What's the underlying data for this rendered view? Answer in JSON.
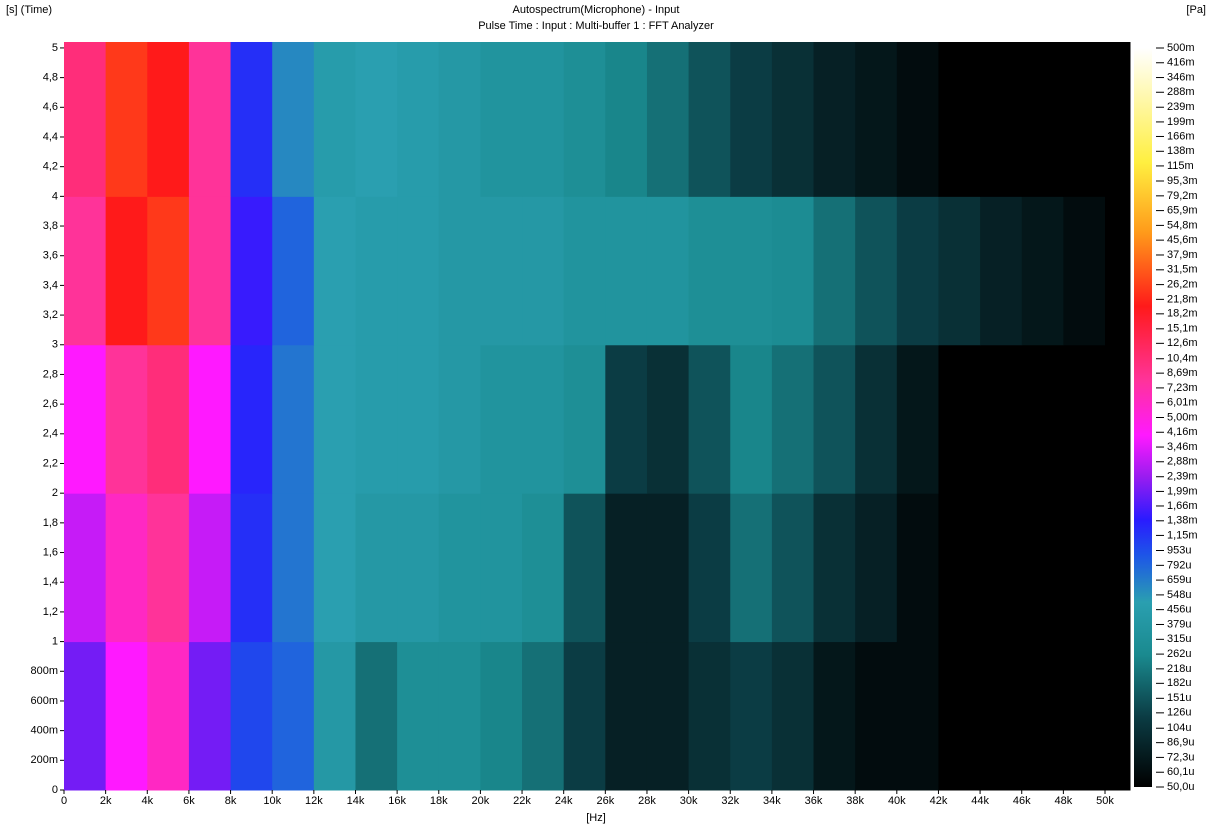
{
  "chart_data": {
    "type": "heatmap",
    "title": "Autospectrum(Microphone) - Input",
    "subtitle": "Pulse Time : Input : Multi-buffer 1 : FFT Analyzer",
    "y_label": "[s] (Time)",
    "x_label": "[Hz]",
    "colorbar_label": "[Pa]",
    "xlim": [
      0,
      51200
    ],
    "ylim": [
      0,
      5.04
    ],
    "xticks": [
      0,
      {
        "value": 2000,
        "label": "2k"
      },
      {
        "value": 4000,
        "label": "4k"
      },
      {
        "value": 6000,
        "label": "6k"
      },
      {
        "value": 8000,
        "label": "8k"
      },
      {
        "value": 10000,
        "label": "10k"
      },
      {
        "value": 12000,
        "label": "12k"
      },
      {
        "value": 14000,
        "label": "14k"
      },
      {
        "value": 16000,
        "label": "16k"
      },
      {
        "value": 18000,
        "label": "18k"
      },
      {
        "value": 20000,
        "label": "20k"
      },
      {
        "value": 22000,
        "label": "22k"
      },
      {
        "value": 24000,
        "label": "24k"
      },
      {
        "value": 26000,
        "label": "26k"
      },
      {
        "value": 28000,
        "label": "28k"
      },
      {
        "value": 30000,
        "label": "30k"
      },
      {
        "value": 32000,
        "label": "32k"
      },
      {
        "value": 34000,
        "label": "34k"
      },
      {
        "value": 36000,
        "label": "36k"
      },
      {
        "value": 38000,
        "label": "38k"
      },
      {
        "value": 40000,
        "label": "40k"
      },
      {
        "value": 42000,
        "label": "42k"
      },
      {
        "value": 44000,
        "label": "44k"
      },
      {
        "value": 46000,
        "label": "46k"
      },
      {
        "value": 48000,
        "label": "48k"
      },
      {
        "value": 50000,
        "label": "50k"
      }
    ],
    "yticks": [
      0,
      {
        "value": 0.2,
        "label": "200m"
      },
      {
        "value": 0.4,
        "label": "400m"
      },
      {
        "value": 0.6,
        "label": "600m"
      },
      {
        "value": 0.8,
        "label": "800m"
      },
      1,
      {
        "value": 1.2,
        "label": "1,2"
      },
      {
        "value": 1.4,
        "label": "1,4"
      },
      {
        "value": 1.6,
        "label": "1,6"
      },
      {
        "value": 1.8,
        "label": "1,8"
      },
      2,
      {
        "value": 2.2,
        "label": "2,2"
      },
      {
        "value": 2.4,
        "label": "2,4"
      },
      {
        "value": 2.6,
        "label": "2,6"
      },
      {
        "value": 2.8,
        "label": "2,8"
      },
      3,
      {
        "value": 3.2,
        "label": "3,2"
      },
      {
        "value": 3.4,
        "label": "3,4"
      },
      {
        "value": 3.6,
        "label": "3,6"
      },
      {
        "value": 3.8,
        "label": "3,8"
      },
      4,
      {
        "value": 4.2,
        "label": "4,2"
      },
      {
        "value": 4.4,
        "label": "4,4"
      },
      {
        "value": 4.6,
        "label": "4,6"
      },
      {
        "value": 4.8,
        "label": "4,8"
      },
      5
    ],
    "zlim": [
      5e-05,
      0.5
    ],
    "zscale": "log",
    "zticks": [
      {
        "value": 0.5,
        "label": "500m"
      },
      {
        "value": 0.416,
        "label": "416m"
      },
      {
        "value": 0.346,
        "label": "346m"
      },
      {
        "value": 0.288,
        "label": "288m"
      },
      {
        "value": 0.239,
        "label": "239m"
      },
      {
        "value": 0.199,
        "label": "199m"
      },
      {
        "value": 0.166,
        "label": "166m"
      },
      {
        "value": 0.138,
        "label": "138m"
      },
      {
        "value": 0.115,
        "label": "115m"
      },
      {
        "value": 0.0953,
        "label": "95,3m"
      },
      {
        "value": 0.0792,
        "label": "79,2m"
      },
      {
        "value": 0.0659,
        "label": "65,9m"
      },
      {
        "value": 0.0548,
        "label": "54,8m"
      },
      {
        "value": 0.0456,
        "label": "45,6m"
      },
      {
        "value": 0.0379,
        "label": "37,9m"
      },
      {
        "value": 0.0315,
        "label": "31,5m"
      },
      {
        "value": 0.0262,
        "label": "26,2m"
      },
      {
        "value": 0.0218,
        "label": "21,8m"
      },
      {
        "value": 0.0182,
        "label": "18,2m"
      },
      {
        "value": 0.0151,
        "label": "15,1m"
      },
      {
        "value": 0.0126,
        "label": "12,6m"
      },
      {
        "value": 0.0104,
        "label": "10,4m"
      },
      {
        "value": 0.00869,
        "label": "8,69m"
      },
      {
        "value": 0.00723,
        "label": "7,23m"
      },
      {
        "value": 0.00601,
        "label": "6,01m"
      },
      {
        "value": 0.005,
        "label": "5,00m"
      },
      {
        "value": 0.00416,
        "label": "4,16m"
      },
      {
        "value": 0.00346,
        "label": "3,46m"
      },
      {
        "value": 0.00288,
        "label": "2,88m"
      },
      {
        "value": 0.00239,
        "label": "2,39m"
      },
      {
        "value": 0.00199,
        "label": "1,99m"
      },
      {
        "value": 0.00166,
        "label": "1,66m"
      },
      {
        "value": 0.00138,
        "label": "1,38m"
      },
      {
        "value": 0.00115,
        "label": "1,15m"
      },
      {
        "value": 0.000953,
        "label": "953u"
      },
      {
        "value": 0.000792,
        "label": "792u"
      },
      {
        "value": 0.000659,
        "label": "659u"
      },
      {
        "value": 0.000548,
        "label": "548u"
      },
      {
        "value": 0.000456,
        "label": "456u"
      },
      {
        "value": 0.000379,
        "label": "379u"
      },
      {
        "value": 0.000315,
        "label": "315u"
      },
      {
        "value": 0.000262,
        "label": "262u"
      },
      {
        "value": 0.000218,
        "label": "218u"
      },
      {
        "value": 0.000182,
        "label": "182u"
      },
      {
        "value": 0.000151,
        "label": "151u"
      },
      {
        "value": 0.000126,
        "label": "126u"
      },
      {
        "value": 0.000104,
        "label": "104u"
      },
      {
        "value": 8.69e-05,
        "label": "86,9u"
      },
      {
        "value": 7.23e-05,
        "label": "72,3u"
      },
      {
        "value": 6.01e-05,
        "label": "60,1u"
      },
      {
        "value": 5e-05,
        "label": "50,0u"
      }
    ],
    "colorscale": [
      [
        5e-05,
        "#000000"
      ],
      [
        0.00012,
        "#0b3c44"
      ],
      [
        0.00026,
        "#1a8a8f"
      ],
      [
        0.0005,
        "#2a9fb0"
      ],
      [
        0.0009,
        "#1d55e8"
      ],
      [
        0.0014,
        "#2a1bff"
      ],
      [
        0.0024,
        "#9a1cf0"
      ],
      [
        0.004,
        "#ff19ff"
      ],
      [
        0.008,
        "#ff3399"
      ],
      [
        0.02,
        "#ff1a1a"
      ],
      [
        0.05,
        "#ff9a1a"
      ],
      [
        0.12,
        "#ffef40"
      ],
      [
        0.5,
        "#ffffff"
      ]
    ],
    "xbins": [
      0,
      2000,
      4000,
      6000,
      8000,
      10000,
      12000,
      14000,
      16000,
      18000,
      20000,
      22000,
      24000,
      26000,
      28000,
      30000,
      32000,
      34000,
      36000,
      38000,
      40000,
      42000,
      44000,
      46000,
      48000,
      50000,
      51200
    ],
    "ybins": [
      0,
      1,
      2,
      3,
      4,
      5.04
    ],
    "z": [
      [
        0.002,
        0.004,
        0.006,
        0.002,
        0.001,
        0.0008,
        0.0004,
        0.0002,
        0.0003,
        0.0003,
        0.00025,
        0.0002,
        0.00012,
        8e-05,
        8e-05,
        0.0001,
        0.00012,
        0.0001,
        7e-05,
        6e-05,
        6e-05,
        5e-05,
        5e-05,
        5e-05,
        5e-05,
        5e-05
      ],
      [
        0.003,
        0.006,
        0.008,
        0.003,
        0.0012,
        0.0007,
        0.0005,
        0.0004,
        0.0004,
        0.00035,
        0.00035,
        0.0003,
        0.00015,
        8e-05,
        8e-05,
        0.00012,
        0.0002,
        0.00015,
        0.0001,
        8e-05,
        6e-05,
        5e-05,
        5e-05,
        5e-05,
        5e-05,
        5e-05
      ],
      [
        0.004,
        0.008,
        0.01,
        0.004,
        0.0013,
        0.0007,
        0.0005,
        0.00045,
        0.00045,
        0.0004,
        0.00035,
        0.00035,
        0.0003,
        0.00012,
        0.0001,
        0.00015,
        0.00025,
        0.0002,
        0.00015,
        0.0001,
        7e-05,
        5e-05,
        5e-05,
        5e-05,
        5e-05,
        5e-05
      ],
      [
        0.008,
        0.02,
        0.025,
        0.008,
        0.0015,
        0.0008,
        0.0005,
        0.00045,
        0.00045,
        0.0004,
        0.0004,
        0.0004,
        0.00035,
        0.00035,
        0.00035,
        0.0003,
        0.0003,
        0.00028,
        0.0002,
        0.00015,
        0.00012,
        0.0001,
        8e-05,
        7e-05,
        6e-05,
        5e-05
      ],
      [
        0.01,
        0.025,
        0.02,
        0.008,
        0.0012,
        0.0006,
        0.00045,
        0.0005,
        0.00045,
        0.0004,
        0.00035,
        0.00035,
        0.0003,
        0.00025,
        0.0002,
        0.00015,
        0.00012,
        0.0001,
        8e-05,
        7e-05,
        6e-05,
        5e-05,
        5e-05,
        5e-05,
        5e-05,
        5e-05
      ]
    ]
  }
}
